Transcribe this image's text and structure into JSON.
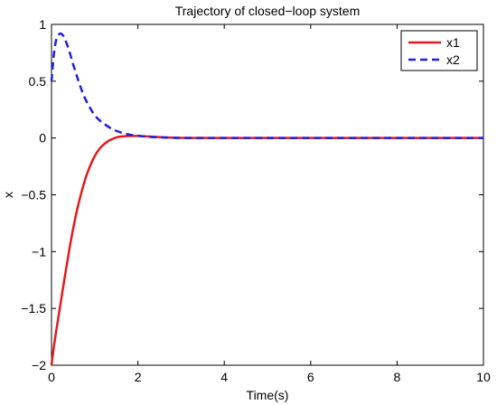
{
  "chart_data": {
    "type": "line",
    "title": "Trajectory of closed−loop system",
    "xlabel": "Time(s)",
    "ylabel": "x",
    "xlim": [
      0,
      10
    ],
    "ylim": [
      -2,
      1
    ],
    "x_ticks": [
      0,
      2,
      4,
      6,
      8,
      10
    ],
    "x_tick_labels": [
      "0",
      "2",
      "4",
      "6",
      "8",
      "10"
    ],
    "y_ticks": [
      -2,
      -1.5,
      -1,
      -0.5,
      0,
      0.5,
      1
    ],
    "y_tick_labels": [
      "−2",
      "−1.5",
      "−1",
      "−0.5",
      "0",
      "0.5",
      "1"
    ],
    "grid": false,
    "legend_position": "top-right",
    "series": [
      {
        "name": "x1",
        "color": "#e31a1c",
        "style": "solid",
        "x": [
          0,
          0.05,
          0.1,
          0.2,
          0.3,
          0.4,
          0.5,
          0.6,
          0.7,
          0.8,
          0.9,
          1.0,
          1.1,
          1.2,
          1.3,
          1.4,
          1.5,
          1.6,
          1.8,
          2.0,
          2.2,
          2.4,
          2.6,
          2.8,
          3.0,
          3.5,
          4,
          5,
          6,
          7,
          8,
          9,
          10
        ],
        "y": [
          -2,
          -1.85,
          -1.72,
          -1.48,
          -1.24,
          -1.01,
          -0.8,
          -0.62,
          -0.47,
          -0.34,
          -0.24,
          -0.16,
          -0.1,
          -0.06,
          -0.03,
          -0.01,
          0.005,
          0.012,
          0.018,
          0.018,
          0.014,
          0.01,
          0.006,
          0.003,
          0.001,
          0,
          0,
          0,
          0,
          0,
          0,
          0,
          0
        ]
      },
      {
        "name": "x2",
        "color": "#1f1fe0",
        "style": "dashed",
        "x": [
          0,
          0.05,
          0.1,
          0.15,
          0.2,
          0.25,
          0.3,
          0.4,
          0.5,
          0.6,
          0.7,
          0.8,
          0.9,
          1.0,
          1.1,
          1.2,
          1.4,
          1.6,
          1.8,
          2.0,
          2.2,
          2.4,
          2.6,
          2.8,
          3.0,
          3.5,
          4,
          5,
          6,
          7,
          8,
          9,
          10
        ],
        "y": [
          0.5,
          0.72,
          0.85,
          0.9,
          0.92,
          0.91,
          0.88,
          0.78,
          0.65,
          0.53,
          0.42,
          0.33,
          0.26,
          0.2,
          0.16,
          0.13,
          0.08,
          0.05,
          0.03,
          0.02,
          0.012,
          0.007,
          0.004,
          0.002,
          0.001,
          0,
          0,
          0,
          0,
          0,
          0,
          0,
          0
        ]
      }
    ]
  }
}
